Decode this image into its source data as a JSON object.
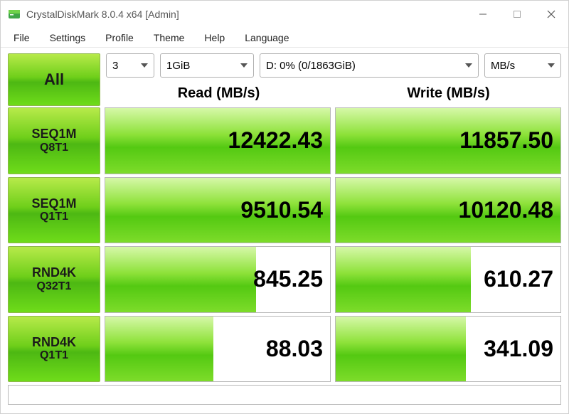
{
  "window": {
    "title": "CrystalDiskMark 8.0.4 x64 [Admin]"
  },
  "menu": {
    "file": "File",
    "settings": "Settings",
    "profile": "Profile",
    "theme": "Theme",
    "help": "Help",
    "language": "Language"
  },
  "controls": {
    "all_label": "All",
    "runs": "3",
    "size": "1GiB",
    "drive": "D: 0% (0/1863GiB)",
    "unit": "MB/s"
  },
  "headers": {
    "read": "Read (MB/s)",
    "write": "Write (MB/s)"
  },
  "tests": [
    {
      "label1": "SEQ1M",
      "label2": "Q8T1",
      "read": "12422.43",
      "write": "11857.50",
      "read_fill": 100,
      "write_fill": 100
    },
    {
      "label1": "SEQ1M",
      "label2": "Q1T1",
      "read": "9510.54",
      "write": "10120.48",
      "read_fill": 100,
      "write_fill": 100
    },
    {
      "label1": "RND4K",
      "label2": "Q32T1",
      "read": "845.25",
      "write": "610.27",
      "read_fill": 67,
      "write_fill": 60
    },
    {
      "label1": "RND4K",
      "label2": "Q1T1",
      "read": "88.03",
      "write": "341.09",
      "read_fill": 48,
      "write_fill": 58
    }
  ],
  "colors": {
    "green_light": "#b7ea4a",
    "green_dark": "#4db813",
    "border": "#b8b8b8",
    "text": "#000000",
    "background": "#ffffff"
  }
}
